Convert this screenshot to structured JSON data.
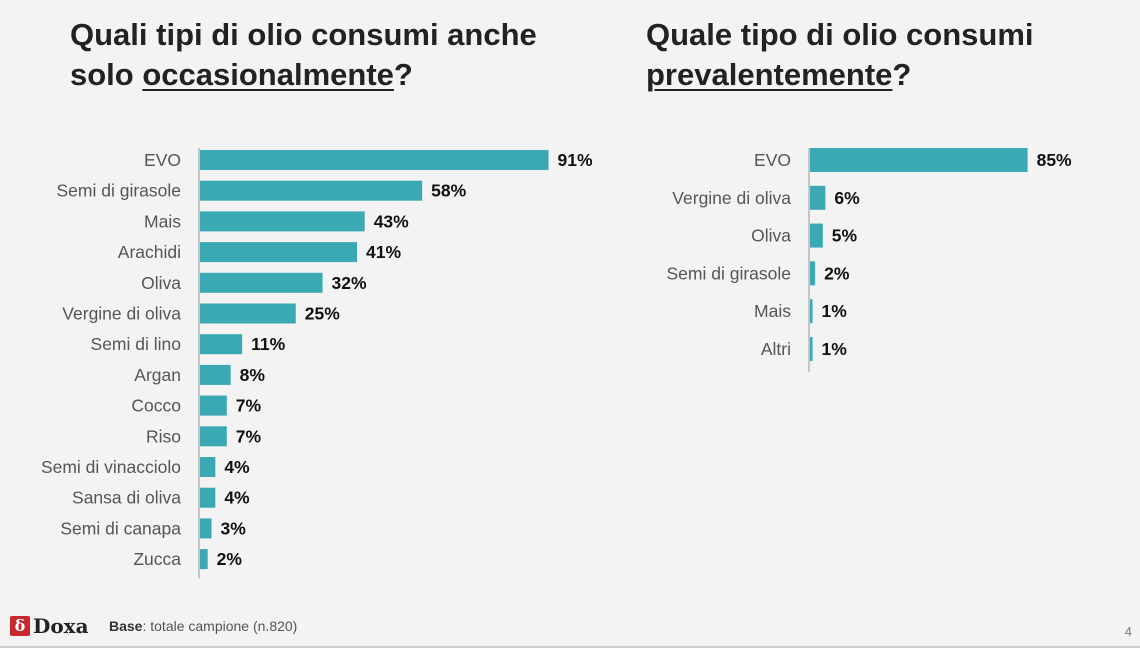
{
  "titles": {
    "left_prefix": "Quali tipi di olio consumi anche",
    "left_line2_prefix": "solo ",
    "left_emphasis": "occasionalmente",
    "left_suffix": "?",
    "right_prefix": "Quale tipo di olio consumi",
    "right_emphasis": "prevalentemente",
    "right_suffix": "?"
  },
  "footer": {
    "logo_mark": "δ",
    "logo_text": "Doxa",
    "base_label": "Base",
    "base_text": ": totale campione (n.820)",
    "page_number": "4"
  },
  "colors": {
    "bar": "#3aa9b4",
    "axis": "#999999"
  },
  "chart_data": [
    {
      "type": "bar",
      "orientation": "horizontal",
      "title": "Quali tipi di olio consumi anche solo occasionalmente?",
      "categories": [
        "EVO",
        "Semi di girasole",
        "Mais",
        "Arachidi",
        "Oliva",
        "Vergine di oliva",
        "Semi di lino",
        "Argan",
        "Cocco",
        "Riso",
        "Semi di vinacciolo",
        "Sansa di oliva",
        "Semi di canapa",
        "Zucca"
      ],
      "values": [
        91,
        58,
        43,
        41,
        32,
        25,
        11,
        8,
        7,
        7,
        4,
        4,
        3,
        2
      ],
      "value_suffix": "%",
      "xlim": [
        0,
        100
      ],
      "grid": false
    },
    {
      "type": "bar",
      "orientation": "horizontal",
      "title": "Quale tipo di olio consumi prevalentemente?",
      "categories": [
        "EVO",
        "Vergine di oliva",
        "Oliva",
        "Semi di girasole",
        "Mais",
        "Altri"
      ],
      "values": [
        85,
        6,
        5,
        2,
        1,
        1
      ],
      "value_suffix": "%",
      "xlim": [
        0,
        100
      ],
      "grid": false
    }
  ]
}
